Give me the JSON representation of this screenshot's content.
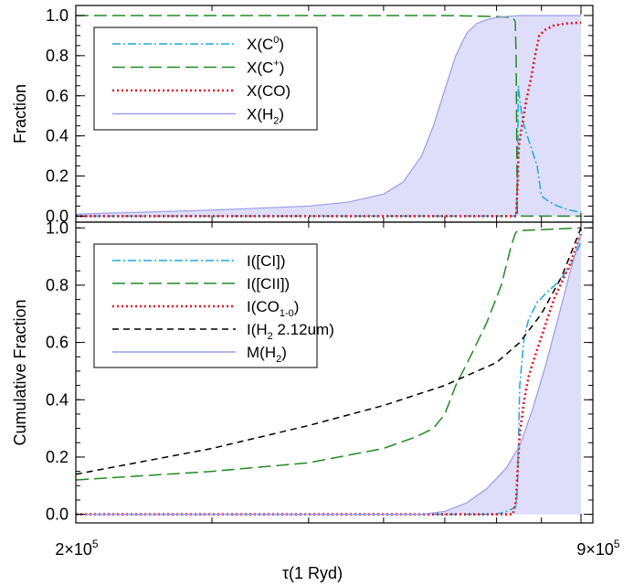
{
  "chart_data": [
    {
      "type": "line",
      "panel": "top",
      "ylabel": "Fraction",
      "xlabel": "",
      "ylim": [
        -0.03,
        1.05
      ],
      "yticks": [
        "0.0",
        "0.2",
        "0.4",
        "0.6",
        "0.8",
        "1.0"
      ],
      "ytick_values": [
        0.0,
        0.2,
        0.4,
        0.6,
        0.8,
        1.0
      ],
      "x_scale": "log",
      "xlim": [
        200000,
        900000
      ],
      "legend_position": "top-left",
      "series": [
        {
          "name": "X(C0)",
          "label_base": "X(C",
          "label_sup": "0",
          "label_end": ")",
          "style": "dashdot",
          "color": "#1ea7df",
          "fill": false,
          "x": [
            200000,
            400000,
            600000,
            700000,
            740000,
            743000,
            745000,
            747000,
            750000,
            755000,
            760000,
            770000,
            790000,
            800000,
            820000,
            840000,
            870000,
            900000
          ],
          "y": [
            0.0,
            0.0,
            0.0,
            0.0,
            0.0,
            0.03,
            0.2,
            0.65,
            0.58,
            0.5,
            0.45,
            0.38,
            0.25,
            0.1,
            0.07,
            0.05,
            0.03,
            0.02
          ]
        },
        {
          "name": "X(C+)",
          "label_base": "X(C",
          "label_sup": "+",
          "label_end": ")",
          "style": "longdash",
          "color": "#228b22",
          "fill": false,
          "x": [
            200000,
            400000,
            600000,
            700000,
            735000,
            740000,
            742000,
            743500,
            744500,
            745000,
            750000,
            900000
          ],
          "y": [
            1.0,
            1.0,
            1.0,
            0.995,
            0.99,
            0.97,
            0.8,
            0.3,
            0.02,
            0.0,
            0.0,
            0.0
          ]
        },
        {
          "name": "X(CO)",
          "label_base": "X(CO)",
          "label_sup": "",
          "label_end": "",
          "style": "dotted",
          "color": "#e8141c",
          "fill": false,
          "x": [
            200000,
            600000,
            730000,
            742000,
            745000,
            748000,
            755000,
            765000,
            775000,
            785000,
            795000,
            810000,
            830000,
            860000,
            900000
          ],
          "y": [
            0.0,
            0.0,
            0.0,
            0.0,
            0.15,
            0.35,
            0.45,
            0.58,
            0.68,
            0.8,
            0.9,
            0.93,
            0.95,
            0.96,
            0.965
          ]
        },
        {
          "name": "X(H2)",
          "label_base": "X(H",
          "label_sub": "2",
          "label_end": ")",
          "style": "solid",
          "color": "#9b9bea",
          "fill": true,
          "x": [
            200000,
            300000,
            400000,
            450000,
            500000,
            530000,
            560000,
            580000,
            600000,
            620000,
            640000,
            660000,
            680000,
            700000,
            720000,
            750000,
            800000,
            900000
          ],
          "y": [
            0.01,
            0.03,
            0.05,
            0.07,
            0.11,
            0.17,
            0.3,
            0.45,
            0.63,
            0.8,
            0.91,
            0.96,
            0.98,
            0.99,
            0.995,
            1.0,
            1.0,
            1.0
          ]
        }
      ]
    },
    {
      "type": "line",
      "panel": "bottom",
      "ylabel": "Cumulative Fraction",
      "xlabel": "τ(1 Ryd)",
      "ylim": [
        -0.03,
        1.02
      ],
      "yticks": [
        "0.0",
        "0.2",
        "0.4",
        "0.6",
        "0.8",
        "1.0"
      ],
      "ytick_values": [
        0.0,
        0.2,
        0.4,
        0.6,
        0.8,
        1.0
      ],
      "x_scale": "log",
      "xlim": [
        200000,
        900000
      ],
      "xtick_labels": [
        {
          "value": 200000,
          "mantissa": "2×10",
          "exponent": "5"
        },
        {
          "value": 900000,
          "mantissa": "9×10",
          "exponent": "5"
        }
      ],
      "legend_position": "top-left",
      "series": [
        {
          "name": "I([CI])",
          "label_base": "I([CI])",
          "style": "dashdot",
          "color": "#1ea7df",
          "fill": false,
          "x": [
            200000,
            600000,
            700000,
            720000,
            735000,
            742000,
            745000,
            750000,
            760000,
            770000,
            790000,
            810000,
            840000,
            870000,
            900000
          ],
          "y": [
            0.0,
            0.0,
            0.0,
            0.01,
            0.02,
            0.03,
            0.1,
            0.45,
            0.62,
            0.68,
            0.74,
            0.77,
            0.81,
            0.86,
            0.95
          ]
        },
        {
          "name": "I([CII])",
          "label_base": "I([CII])",
          "style": "longdash",
          "color": "#228b22",
          "fill": false,
          "x": [
            200000,
            300000,
            400000,
            500000,
            550000,
            580000,
            600000,
            620000,
            650000,
            680000,
            710000,
            730000,
            740000,
            745000,
            900000
          ],
          "y": [
            0.12,
            0.15,
            0.18,
            0.23,
            0.27,
            0.3,
            0.35,
            0.45,
            0.56,
            0.67,
            0.8,
            0.93,
            0.98,
            0.99,
            1.0
          ]
        },
        {
          "name": "I(CO1-0)",
          "label_base": "I(CO",
          "label_sub": "1-0",
          "label_end": ")",
          "style": "dotted",
          "color": "#e8141c",
          "fill": false,
          "x": [
            200000,
            700000,
            735000,
            742000,
            745000,
            750000,
            760000,
            770000,
            780000,
            800000,
            830000,
            870000,
            900000
          ],
          "y": [
            0.0,
            0.0,
            0.0,
            0.05,
            0.15,
            0.28,
            0.4,
            0.48,
            0.53,
            0.62,
            0.75,
            0.87,
            0.98
          ]
        },
        {
          "name": "I(H2 2.12um)",
          "label_base": "I(H",
          "label_sub": "2",
          "label_end": " 2.12um)",
          "style": "dashed",
          "color": "#000000",
          "fill": false,
          "x": [
            200000,
            300000,
            400000,
            500000,
            600000,
            700000,
            750000,
            800000,
            850000,
            900000
          ],
          "y": [
            0.14,
            0.23,
            0.31,
            0.38,
            0.45,
            0.53,
            0.6,
            0.7,
            0.83,
            1.0
          ]
        },
        {
          "name": "M(H2)",
          "label_base": "M(H",
          "label_sub": "2",
          "label_end": ")",
          "style": "solid",
          "color": "#9b9bea",
          "fill": true,
          "x": [
            200000,
            560000,
            600000,
            640000,
            680000,
            720000,
            750000,
            780000,
            810000,
            840000,
            870000,
            900000
          ],
          "y": [
            0.0,
            0.0,
            0.01,
            0.04,
            0.09,
            0.16,
            0.24,
            0.37,
            0.52,
            0.68,
            0.84,
            0.98
          ]
        }
      ]
    }
  ]
}
